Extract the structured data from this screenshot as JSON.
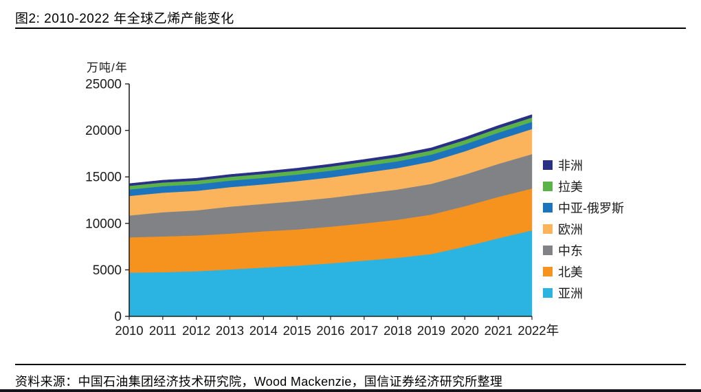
{
  "figure": {
    "title": "图2: 2010-2022 年全球乙烯产能变化",
    "source": "资料来源：中国石油集团经济技术研究院，Wood Mackenzie，国信证券经济研究所整理"
  },
  "chart_data": {
    "type": "area",
    "stacked": true,
    "title": "图2: 2010-2022 年全球乙烯产能变化",
    "ylabel": "万吨/年",
    "x": [
      2010,
      2011,
      2012,
      2013,
      2014,
      2015,
      2016,
      2017,
      2018,
      2019,
      2020,
      2021,
      2022
    ],
    "x_suffix_label": "年",
    "ylim": [
      0,
      25000
    ],
    "yticks": [
      0,
      5000,
      10000,
      15000,
      20000,
      25000
    ],
    "grid": false,
    "legend_position": "right",
    "axis_color": "#231f20",
    "series": [
      {
        "name": "亚洲",
        "key": "asia",
        "color": "#2BB3E2",
        "values": [
          4700,
          4750,
          4850,
          5050,
          5250,
          5450,
          5700,
          6000,
          6300,
          6700,
          7500,
          8400,
          9250
        ]
      },
      {
        "name": "北美",
        "key": "north-america",
        "color": "#F6921E",
        "values": [
          3800,
          3850,
          3850,
          3850,
          3900,
          3900,
          3950,
          4000,
          4100,
          4250,
          4350,
          4450,
          4500
        ]
      },
      {
        "name": "中东",
        "key": "middle-east",
        "color": "#808285",
        "values": [
          2350,
          2600,
          2700,
          2900,
          2950,
          3050,
          3100,
          3200,
          3250,
          3300,
          3400,
          3550,
          3700
        ]
      },
      {
        "name": "欧洲",
        "key": "europe",
        "color": "#FBB45C",
        "values": [
          2100,
          2100,
          2100,
          2100,
          2100,
          2150,
          2200,
          2250,
          2300,
          2400,
          2500,
          2600,
          2700
        ]
      },
      {
        "name": "中亚-俄罗斯",
        "key": "central-asia-russia",
        "color": "#1C75BC",
        "values": [
          700,
          700,
          700,
          700,
          700,
          700,
          720,
          720,
          730,
          740,
          750,
          760,
          770
        ]
      },
      {
        "name": "拉美",
        "key": "latin-america",
        "color": "#5BB248",
        "values": [
          390,
          400,
          400,
          410,
          420,
          430,
          440,
          440,
          450,
          450,
          460,
          470,
          470
        ]
      },
      {
        "name": "非洲",
        "key": "africa",
        "color": "#2B3087",
        "values": [
          240,
          250,
          250,
          250,
          260,
          260,
          270,
          270,
          280,
          290,
          300,
          300,
          310
        ]
      }
    ],
    "legend_order_top_to_bottom": [
      "非洲",
      "拉美",
      "中亚-俄罗斯",
      "欧洲",
      "中东",
      "北美",
      "亚洲"
    ]
  }
}
